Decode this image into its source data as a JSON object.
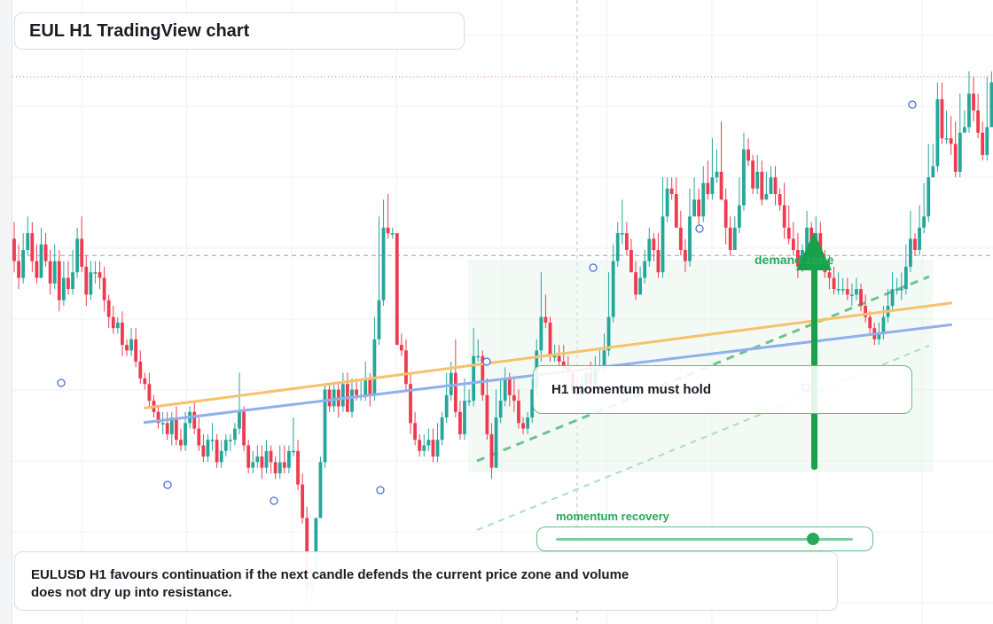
{
  "title": "EUL H1 TradingView chart",
  "annotation": {
    "label": "H1 momentum must hold",
    "zone_label": "demand zone",
    "slider_label": "momentum recovery",
    "slider_value": 0.86
  },
  "note": "EULUSD H1 favours continuation if the next candle defends the current price zone and volume does not dry up into resistance.",
  "colors": {
    "up": "#26a69a",
    "down": "#ef3b50",
    "ma_fast": "#f6c26b",
    "ma_slow": "#8fb0ec",
    "accent": "#27a85a"
  },
  "chart_data": {
    "type": "candlestick",
    "timeframe": "H1",
    "ylim": [
      0,
      100
    ],
    "resistance_level": 91,
    "current_level": 59,
    "candles": [
      [
        62,
        58,
        65,
        56
      ],
      [
        58,
        55,
        61,
        53
      ],
      [
        55,
        60,
        63,
        54
      ],
      [
        60,
        63,
        66,
        59
      ],
      [
        63,
        58,
        65,
        56
      ],
      [
        58,
        55,
        61,
        54
      ],
      [
        55,
        61,
        64,
        55
      ],
      [
        61,
        58,
        63,
        57
      ],
      [
        58,
        54,
        60,
        52
      ],
      [
        54,
        58,
        61,
        53
      ],
      [
        58,
        51,
        60,
        49
      ],
      [
        51,
        55,
        58,
        50
      ],
      [
        55,
        53,
        58,
        52
      ],
      [
        53,
        56,
        60,
        52
      ],
      [
        56,
        62,
        64,
        55
      ],
      [
        62,
        57,
        66,
        56
      ],
      [
        57,
        52,
        59,
        50
      ],
      [
        52,
        56,
        58,
        51
      ],
      [
        56,
        56,
        58,
        54
      ],
      [
        56,
        55,
        58,
        53
      ],
      [
        55,
        51,
        57,
        49
      ],
      [
        51,
        48,
        52,
        46
      ],
      [
        48,
        46,
        50,
        45
      ],
      [
        46,
        47,
        48,
        45
      ],
      [
        47,
        43,
        49,
        41
      ],
      [
        43,
        42,
        44,
        41
      ],
      [
        42,
        44,
        46,
        41
      ],
      [
        44,
        40,
        46,
        39
      ],
      [
        40,
        37,
        42,
        36
      ],
      [
        37,
        36,
        38,
        35
      ],
      [
        36,
        33,
        38,
        32
      ],
      [
        33,
        31,
        34,
        30
      ],
      [
        31,
        29,
        32,
        28
      ],
      [
        29,
        29,
        31,
        27
      ],
      [
        29,
        27,
        31,
        26
      ],
      [
        27,
        30,
        31,
        25
      ],
      [
        30,
        26,
        32,
        25
      ],
      [
        26,
        25,
        28,
        24
      ],
      [
        25,
        29,
        31,
        24
      ],
      [
        29,
        31,
        32,
        28
      ],
      [
        31,
        28,
        33,
        27
      ],
      [
        28,
        25,
        30,
        24
      ],
      [
        25,
        23,
        27,
        22
      ],
      [
        23,
        26,
        27,
        22
      ],
      [
        26,
        26,
        29,
        24
      ],
      [
        26,
        22,
        27,
        21
      ],
      [
        22,
        24,
        26,
        21
      ],
      [
        24,
        26,
        27,
        23
      ],
      [
        26,
        26,
        27,
        24
      ],
      [
        26,
        28,
        29,
        25
      ],
      [
        28,
        31,
        38,
        27
      ],
      [
        31,
        25,
        32,
        24
      ],
      [
        25,
        21,
        26,
        20
      ],
      [
        21,
        22,
        24,
        20
      ],
      [
        22,
        23,
        25,
        21
      ],
      [
        23,
        21,
        25,
        19
      ],
      [
        21,
        24,
        26,
        20
      ],
      [
        24,
        22,
        25,
        20
      ],
      [
        22,
        20,
        23,
        19
      ],
      [
        20,
        22,
        25,
        19
      ],
      [
        22,
        21,
        25,
        20
      ],
      [
        21,
        24,
        25,
        20
      ],
      [
        24,
        24,
        30,
        23
      ],
      [
        24,
        18,
        26,
        17
      ],
      [
        18,
        12,
        20,
        11
      ],
      [
        12,
        -1,
        14,
        -4
      ],
      [
        -1,
        3,
        4,
        -2
      ],
      [
        3,
        12,
        12,
        2
      ],
      [
        12,
        22,
        23,
        12
      ],
      [
        22,
        35,
        36,
        21
      ],
      [
        35,
        32,
        36,
        31
      ],
      [
        32,
        35,
        36,
        31
      ],
      [
        35,
        32,
        36,
        30
      ],
      [
        32,
        36,
        38,
        31
      ],
      [
        36,
        31,
        38,
        31
      ],
      [
        31,
        35,
        37,
        30
      ],
      [
        35,
        34,
        37,
        33
      ],
      [
        34,
        34,
        37,
        33
      ],
      [
        34,
        37,
        40,
        33
      ],
      [
        37,
        34,
        38,
        32
      ],
      [
        34,
        44,
        48,
        33
      ],
      [
        44,
        51,
        66,
        43
      ],
      [
        51,
        64,
        69,
        50
      ],
      [
        64,
        63,
        70,
        62
      ],
      [
        63,
        63,
        64,
        62
      ],
      [
        63,
        43,
        44,
        43
      ],
      [
        43,
        42,
        45,
        41
      ],
      [
        42,
        36,
        44,
        35
      ],
      [
        36,
        29,
        38,
        27
      ],
      [
        29,
        26,
        31,
        25
      ],
      [
        26,
        24,
        27,
        23
      ],
      [
        24,
        25,
        27,
        23
      ],
      [
        25,
        26,
        28,
        24
      ],
      [
        26,
        23,
        28,
        22
      ],
      [
        23,
        26,
        29,
        22
      ],
      [
        26,
        30,
        31,
        25
      ],
      [
        30,
        34,
        38,
        29
      ],
      [
        34,
        38,
        40,
        33
      ],
      [
        38,
        31,
        44,
        30
      ],
      [
        31,
        27,
        33,
        26
      ],
      [
        27,
        33,
        37,
        26
      ],
      [
        33,
        33,
        35,
        32
      ],
      [
        33,
        41,
        46,
        32
      ],
      [
        41,
        41,
        44,
        40
      ],
      [
        41,
        34,
        42,
        33
      ],
      [
        34,
        27,
        37,
        26
      ],
      [
        27,
        21,
        29,
        19
      ],
      [
        21,
        30,
        35,
        21
      ],
      [
        30,
        33,
        37,
        29
      ],
      [
        33,
        37,
        39,
        32
      ],
      [
        37,
        34,
        38,
        32
      ],
      [
        34,
        33,
        37,
        31
      ],
      [
        33,
        29,
        35,
        28
      ],
      [
        29,
        28,
        30,
        27
      ],
      [
        28,
        30,
        31,
        27
      ],
      [
        30,
        35,
        37,
        29
      ],
      [
        35,
        42,
        44,
        34
      ],
      [
        42,
        48,
        56,
        40
      ],
      [
        48,
        47,
        52,
        46
      ],
      [
        47,
        41,
        48,
        40
      ],
      [
        41,
        41,
        43,
        40
      ],
      [
        41,
        40,
        43,
        39
      ],
      [
        40,
        39,
        43,
        38
      ],
      [
        39,
        38,
        41,
        37
      ],
      [
        38,
        35,
        38,
        35
      ],
      [
        35,
        34,
        37,
        33
      ],
      [
        34,
        36,
        38,
        33
      ],
      [
        36,
        38,
        38,
        35
      ],
      [
        38,
        36,
        40,
        35
      ],
      [
        36,
        39,
        41,
        35
      ],
      [
        39,
        39,
        42,
        38
      ],
      [
        39,
        42,
        45,
        38
      ],
      [
        42,
        48,
        56,
        41
      ],
      [
        48,
        58,
        61,
        47
      ],
      [
        58,
        63,
        65,
        57
      ],
      [
        63,
        63,
        69,
        61
      ],
      [
        63,
        60,
        65,
        59
      ],
      [
        60,
        56,
        62,
        56
      ],
      [
        56,
        52,
        58,
        51
      ],
      [
        52,
        55,
        57,
        52
      ],
      [
        55,
        58,
        60,
        54
      ],
      [
        58,
        62,
        64,
        57
      ],
      [
        62,
        60,
        63,
        58
      ],
      [
        60,
        56,
        63,
        55
      ],
      [
        56,
        66,
        73,
        55
      ],
      [
        66,
        71,
        73,
        65
      ],
      [
        71,
        70,
        73,
        69
      ],
      [
        70,
        64,
        73,
        64
      ],
      [
        64,
        60,
        67,
        59
      ],
      [
        60,
        58,
        62,
        56
      ],
      [
        58,
        66,
        71,
        57
      ],
      [
        66,
        69,
        73,
        66
      ],
      [
        69,
        66,
        71,
        64
      ],
      [
        66,
        72,
        75,
        65
      ],
      [
        72,
        70,
        76,
        69
      ],
      [
        70,
        73,
        80,
        69
      ],
      [
        73,
        74,
        78,
        72
      ],
      [
        74,
        69,
        83,
        69
      ],
      [
        69,
        64,
        71,
        61
      ],
      [
        64,
        60,
        66,
        59
      ],
      [
        60,
        64,
        66,
        62
      ],
      [
        64,
        68,
        73,
        63
      ],
      [
        68,
        78,
        81,
        67
      ],
      [
        78,
        76,
        80,
        75
      ],
      [
        76,
        71,
        77,
        70
      ],
      [
        71,
        74,
        77,
        70
      ],
      [
        74,
        69,
        76,
        68
      ],
      [
        69,
        70,
        74,
        69
      ],
      [
        70,
        73,
        75,
        71
      ],
      [
        73,
        70,
        75,
        68
      ],
      [
        70,
        68,
        71,
        67
      ],
      [
        68,
        64,
        72,
        62
      ],
      [
        64,
        62,
        68,
        61
      ],
      [
        62,
        60,
        65,
        59
      ],
      [
        60,
        57,
        63,
        55
      ],
      [
        57,
        60,
        61,
        56
      ],
      [
        60,
        64,
        67,
        59
      ],
      [
        64,
        61,
        65,
        60
      ],
      [
        61,
        63,
        66,
        60
      ],
      [
        63,
        58,
        65,
        57
      ],
      [
        58,
        56,
        60,
        55
      ],
      [
        56,
        55,
        59,
        53
      ],
      [
        55,
        53,
        57,
        52
      ],
      [
        53,
        53,
        56,
        52
      ],
      [
        53,
        53,
        55,
        52
      ],
      [
        53,
        52,
        55,
        51
      ],
      [
        52,
        52,
        54,
        50
      ],
      [
        52,
        53,
        55,
        51
      ],
      [
        53,
        50,
        54,
        49
      ],
      [
        50,
        48,
        52,
        47
      ],
      [
        48,
        46,
        49,
        45
      ],
      [
        46,
        44,
        47,
        43
      ],
      [
        44,
        45,
        47,
        43
      ],
      [
        45,
        48,
        50,
        44
      ],
      [
        48,
        50,
        53,
        47
      ],
      [
        50,
        53,
        56,
        49
      ],
      [
        53,
        53,
        55,
        52
      ],
      [
        53,
        53,
        56,
        51
      ],
      [
        53,
        57,
        61,
        52
      ],
      [
        57,
        62,
        67,
        56
      ],
      [
        62,
        60,
        63,
        59
      ],
      [
        60,
        64,
        68,
        59
      ],
      [
        64,
        66,
        72,
        63
      ],
      [
        66,
        73,
        79,
        65
      ],
      [
        73,
        75,
        79,
        73
      ],
      [
        75,
        87,
        90,
        74
      ],
      [
        87,
        80,
        90,
        79
      ],
      [
        80,
        80,
        85,
        79
      ],
      [
        80,
        79,
        84,
        77
      ],
      [
        79,
        74,
        83,
        73
      ],
      [
        74,
        81,
        88,
        73
      ],
      [
        81,
        82,
        85,
        81
      ],
      [
        82,
        88,
        92,
        81
      ],
      [
        88,
        85,
        91,
        83
      ],
      [
        85,
        81,
        88,
        80
      ],
      [
        81,
        77,
        83,
        76
      ],
      [
        77,
        82,
        91,
        76
      ],
      [
        82,
        90,
        92,
        82
      ],
      [
        90,
        86,
        92,
        85
      ],
      [
        86,
        88,
        92,
        85
      ],
      [
        88,
        89,
        94,
        87
      ],
      [
        89,
        96,
        96,
        88
      ],
      [
        96,
        81,
        97,
        5
      ],
      [
        81,
        78,
        87,
        76
      ],
      [
        78,
        77,
        86,
        66
      ],
      [
        77,
        88,
        88,
        77
      ],
      [
        88,
        82,
        89,
        80
      ]
    ],
    "series": [
      {
        "values_at_ends": [
          31.7,
          50.5
        ]
      },
      {
        "values_at_ends": [
          29.1,
          46.6
        ]
      }
    ]
  }
}
